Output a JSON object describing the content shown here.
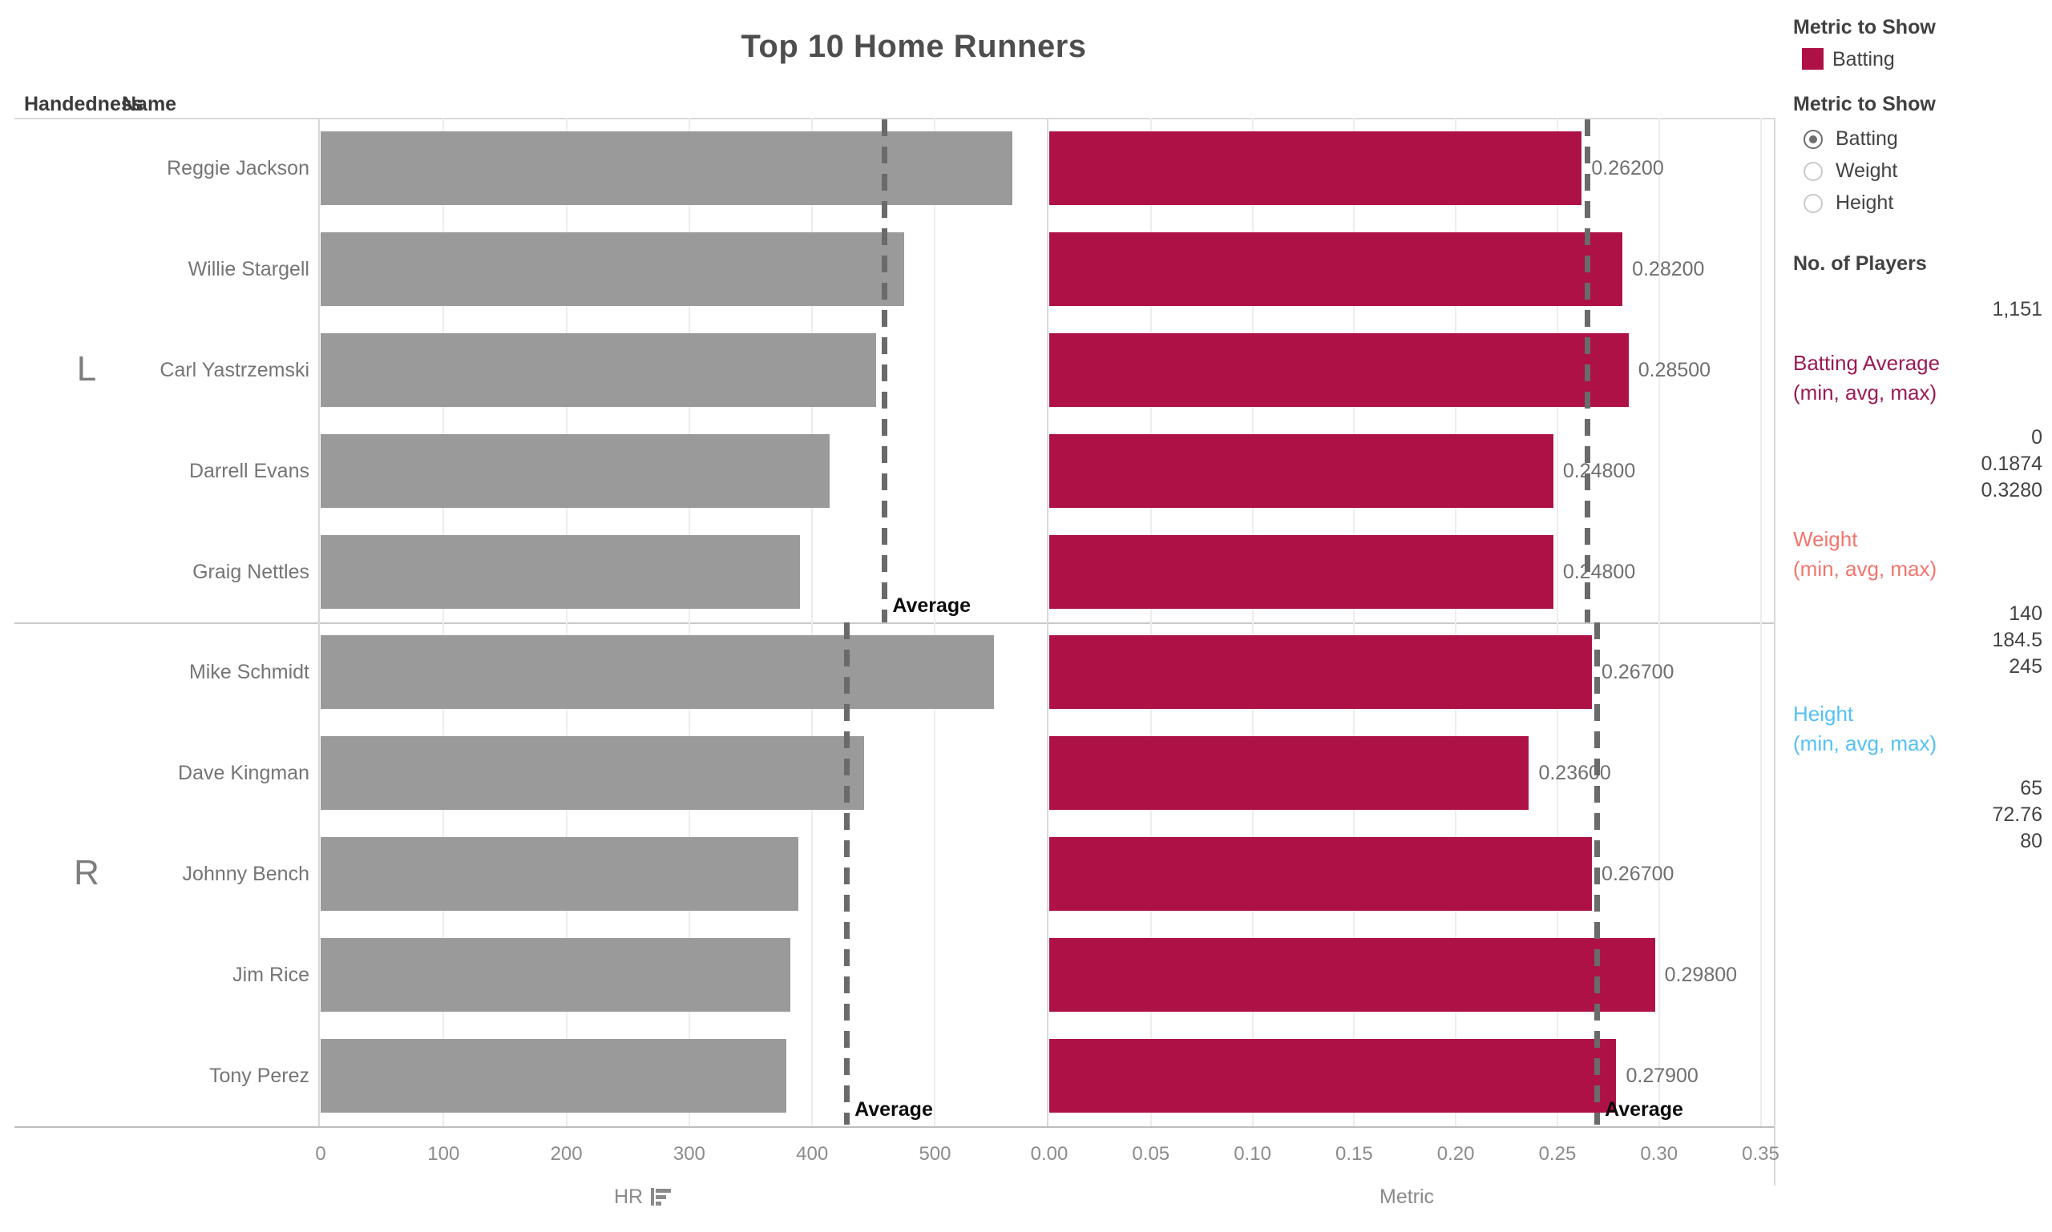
{
  "columns": {
    "handedness": "Handedness",
    "name": "Name"
  },
  "colors": {
    "bar_gray": "#9A9A9A",
    "bar_crimson": "#AE1145",
    "batting_heading": "#9A1A55",
    "weight_heading": "#F2756D",
    "height_heading": "#55C0F5",
    "avg_dash": "#6a6a6a"
  },
  "chart_data": {
    "type": "bar",
    "orientation": "horizontal",
    "title": "Top 10 Home Runners",
    "average_label": "Average",
    "row_groups": [
      {
        "handedness": "L",
        "players": [
          {
            "name": "Reggie Jackson",
            "hr": 563,
            "batting": 0.262,
            "batting_label": "0.26200"
          },
          {
            "name": "Willie Stargell",
            "hr": 475,
            "batting": 0.282,
            "batting_label": "0.28200"
          },
          {
            "name": "Carl Yastrzemski",
            "hr": 452,
            "batting": 0.285,
            "batting_label": "0.28500"
          },
          {
            "name": "Darrell Evans",
            "hr": 414,
            "batting": 0.248,
            "batting_label": "0.24800"
          },
          {
            "name": "Graig Nettles",
            "hr": 390,
            "batting": 0.248,
            "batting_label": "0.24800"
          }
        ]
      },
      {
        "handedness": "R",
        "players": [
          {
            "name": "Mike Schmidt",
            "hr": 548,
            "batting": 0.267,
            "batting_label": "0.26700"
          },
          {
            "name": "Dave Kingman",
            "hr": 442,
            "batting": 0.236,
            "batting_label": "0.23600"
          },
          {
            "name": "Johnny Bench",
            "hr": 389,
            "batting": 0.267,
            "batting_label": "0.26700"
          },
          {
            "name": "Jim Rice",
            "hr": 382,
            "batting": 0.298,
            "batting_label": "0.29800"
          },
          {
            "name": "Tony Perez",
            "hr": 379,
            "batting": 0.279,
            "batting_label": "0.27900"
          }
        ]
      }
    ],
    "series": [
      {
        "name": "HR",
        "field": "hr",
        "axis_label": "HR",
        "sorted_descending": true,
        "ticks": [
          0,
          100,
          200,
          300,
          400,
          500
        ],
        "tick_labels": [
          "0",
          "100",
          "200",
          "300",
          "400",
          "500"
        ],
        "axis_max": 591,
        "color": "#9A9A9A",
        "avg": [
          458.8,
          428
        ],
        "avg_label_shown": [
          true,
          true
        ]
      },
      {
        "name": "Batting",
        "field": "batting",
        "axis_label": "Metric",
        "sorted_descending": false,
        "ticks": [
          0.0,
          0.05,
          0.1,
          0.15,
          0.2,
          0.25,
          0.3,
          0.35
        ],
        "tick_labels": [
          "0.00",
          "0.05",
          "0.10",
          "0.15",
          "0.20",
          "0.25",
          "0.30",
          "0.35"
        ],
        "axis_max": 0.3565,
        "color": "#AE1145",
        "avg": [
          0.265,
          0.2694
        ],
        "avg_label_shown": [
          false,
          true
        ]
      }
    ]
  },
  "sidebar": {
    "legend": {
      "title": "Metric to Show",
      "items": [
        {
          "label": "Batting",
          "color": "#AE1145"
        }
      ]
    },
    "parameter": {
      "title": "Metric to Show",
      "options": [
        {
          "label": "Batting",
          "selected": true
        },
        {
          "label": "Weight",
          "selected": false
        },
        {
          "label": "Height",
          "selected": false
        }
      ]
    },
    "stats": [
      {
        "title": "No. of Players",
        "title_bold": true,
        "color": "#414141",
        "subtitle": "",
        "values": [
          "1,151"
        ]
      },
      {
        "title": "Batting Average",
        "title_bold": false,
        "color": "#9A1A55",
        "subtitle": "(min, avg, max)",
        "values": [
          "0",
          "0.1874",
          "0.3280"
        ]
      },
      {
        "title": "Weight",
        "title_bold": false,
        "color": "#F2756D",
        "subtitle": "(min, avg, max)",
        "values": [
          "140",
          "184.5",
          "245"
        ]
      },
      {
        "title": "Height",
        "title_bold": false,
        "color": "#55C0F5",
        "subtitle": "(min, avg, max)",
        "values": [
          "65",
          "72.76",
          "80"
        ]
      }
    ]
  }
}
